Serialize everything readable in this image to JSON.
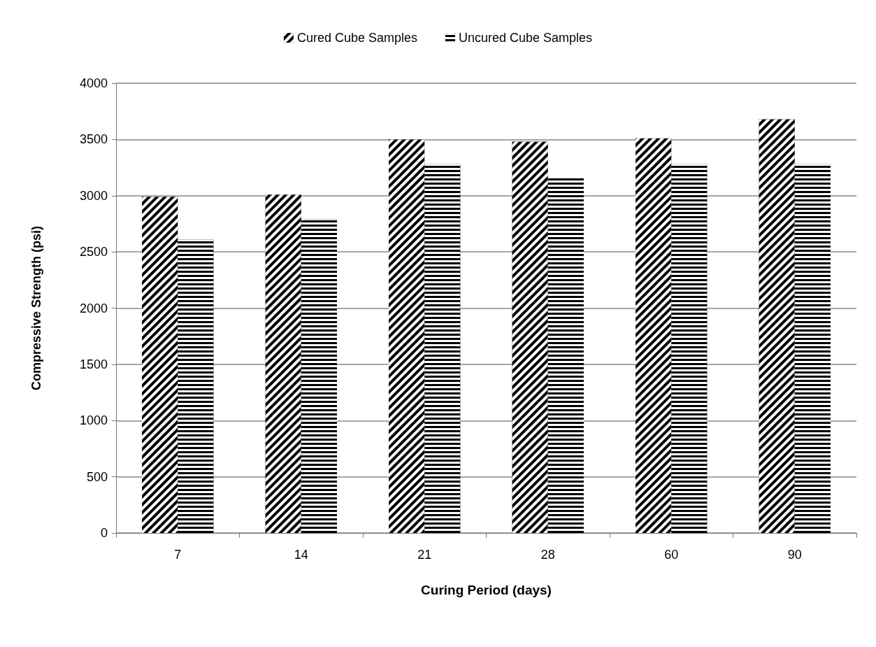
{
  "chart_data": {
    "type": "bar",
    "xlabel": "Curing Period (days)",
    "ylabel": "Compressive Strength (psi)",
    "categories": [
      "7",
      "14",
      "21",
      "28",
      "60",
      "90"
    ],
    "series": [
      {
        "name": "Cured Cube Samples",
        "color": "#000000",
        "values": [
          2990,
          3010,
          3500,
          3480,
          3510,
          3680
        ]
      },
      {
        "name": "Uncured Cube Samples",
        "color": "#000000",
        "values": [
          2610,
          2790,
          3280,
          3160,
          3280,
          3280
        ]
      }
    ],
    "ylim": [
      0,
      4000
    ],
    "yticks": [
      0,
      500,
      1000,
      1500,
      2000,
      2500,
      3000,
      3500,
      4000
    ],
    "grid": "y",
    "legend": "top"
  }
}
